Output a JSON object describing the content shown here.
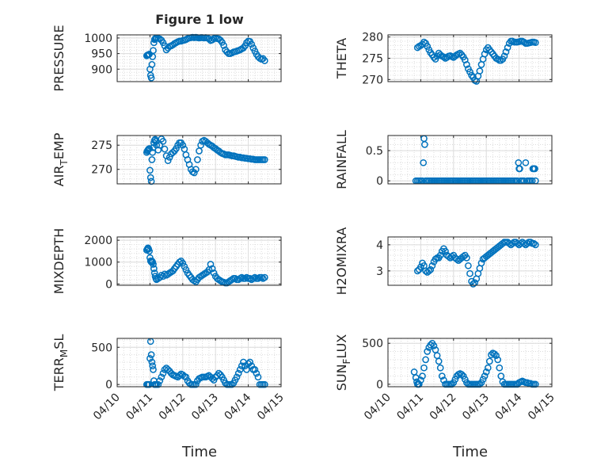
{
  "figure_title": "Figure 1 low",
  "xlabel": "Time",
  "x_tick_labels": [
    "04/10",
    "04/11",
    "04/12",
    "04/13",
    "04/14",
    "04/15"
  ],
  "colors": {
    "marker": "#0072BD",
    "grid": "#dcdcdc",
    "axis": "#262626"
  },
  "chart_data": [
    {
      "type": "scatter",
      "title": "Figure 1 low",
      "ylabel": "PRESSURE",
      "ylim": [
        860,
        1010
      ],
      "yticks": [
        900,
        950,
        1000
      ],
      "xlim": [
        0,
        5
      ],
      "grid": true,
      "x": [
        0.9,
        0.92,
        0.94,
        0.96,
        0.98,
        1.0,
        1.02,
        1.04,
        1.06,
        1.08,
        1.1,
        1.12,
        1.14,
        1.16,
        1.18,
        1.2,
        1.25,
        1.3,
        1.35,
        1.4,
        1.45,
        1.5,
        1.55,
        1.6,
        1.65,
        1.7,
        1.75,
        1.8,
        1.85,
        1.9,
        1.95,
        2.0,
        2.05,
        2.1,
        2.15,
        2.2,
        2.25,
        2.3,
        2.35,
        2.4,
        2.45,
        2.5,
        2.55,
        2.6,
        2.65,
        2.7,
        2.75,
        2.8,
        2.85,
        2.9,
        2.95,
        3.0,
        3.05,
        3.1,
        3.15,
        3.2,
        3.25,
        3.3,
        3.35,
        3.4,
        3.45,
        3.5,
        3.55,
        3.6,
        3.65,
        3.7,
        3.75,
        3.8,
        3.85,
        3.9,
        3.95,
        4.0,
        4.05,
        4.1,
        4.15,
        4.2,
        4.25,
        4.3,
        4.35,
        4.4,
        4.45,
        4.5
      ],
      "y": [
        943,
        945,
        946,
        947,
        948,
        900,
        880,
        872,
        915,
        940,
        960,
        985,
        995,
        998,
        1000,
        1000,
        999,
        997,
        993,
        985,
        975,
        962,
        968,
        973,
        975,
        978,
        982,
        985,
        988,
        990,
        990,
        992,
        993,
        995,
        998,
        1000,
        1001,
        1002,
        1001,
        1002,
        1001,
        1000,
        1001,
        1001,
        1000,
        1001,
        1000,
        997,
        992,
        994,
        998,
        999,
        998,
        997,
        993,
        986,
        976,
        962,
        955,
        950,
        950,
        952,
        955,
        956,
        958,
        960,
        962,
        965,
        968,
        975,
        985,
        990,
        989,
        980,
        968,
        958,
        948,
        940,
        935,
        932,
        934,
        927
      ]
    },
    {
      "type": "scatter",
      "ylabel": "THETA",
      "ylim": [
        269.5,
        280.5
      ],
      "yticks": [
        270,
        275,
        280
      ],
      "xlim": [
        0,
        5
      ],
      "grid": true,
      "x": [
        0.9,
        0.95,
        1.0,
        1.05,
        1.1,
        1.15,
        1.2,
        1.25,
        1.3,
        1.35,
        1.4,
        1.45,
        1.5,
        1.55,
        1.6,
        1.65,
        1.7,
        1.75,
        1.8,
        1.85,
        1.9,
        1.95,
        2.0,
        2.05,
        2.1,
        2.15,
        2.2,
        2.25,
        2.3,
        2.35,
        2.4,
        2.45,
        2.5,
        2.55,
        2.6,
        2.65,
        2.7,
        2.75,
        2.8,
        2.85,
        2.9,
        2.95,
        3.0,
        3.05,
        3.1,
        3.15,
        3.2,
        3.25,
        3.3,
        3.35,
        3.4,
        3.45,
        3.5,
        3.55,
        3.6,
        3.65,
        3.7,
        3.75,
        3.8,
        3.85,
        3.9,
        3.95,
        4.0,
        4.05,
        4.1,
        4.15,
        4.2,
        4.25,
        4.3,
        4.35,
        4.4,
        4.45,
        4.5
      ],
      "y": [
        277.5,
        277.8,
        278.0,
        278.3,
        278.8,
        278.5,
        277.8,
        277.0,
        276.3,
        275.8,
        275.2,
        274.8,
        275.5,
        276.2,
        275.8,
        275.5,
        275.3,
        275.0,
        275.2,
        275.5,
        275.6,
        275.4,
        275.2,
        275.5,
        275.8,
        276.0,
        276.2,
        275.8,
        275.3,
        274.6,
        273.5,
        272.5,
        271.8,
        271.0,
        270.5,
        269.8,
        269.6,
        270.8,
        272.0,
        273.5,
        274.8,
        276.0,
        277.0,
        277.5,
        277.0,
        276.5,
        276.0,
        275.5,
        275.0,
        274.8,
        274.5,
        274.5,
        274.8,
        275.5,
        276.5,
        277.5,
        278.5,
        279.0,
        279.0,
        278.8,
        278.8,
        278.8,
        278.9,
        279.0,
        279.0,
        278.8,
        278.5,
        278.5,
        278.6,
        278.7,
        278.8,
        278.8,
        278.7
      ]
    },
    {
      "type": "scatter",
      "ylabel": "AIR_TEMP",
      "ylim": [
        267,
        277
      ],
      "yticks": [
        270,
        275
      ],
      "xlim": [
        0,
        5
      ],
      "grid": true,
      "x": [
        0.9,
        0.92,
        0.94,
        0.96,
        0.98,
        1.0,
        1.02,
        1.04,
        1.06,
        1.08,
        1.1,
        1.12,
        1.14,
        1.16,
        1.18,
        1.2,
        1.25,
        1.3,
        1.35,
        1.4,
        1.45,
        1.5,
        1.55,
        1.6,
        1.65,
        1.7,
        1.75,
        1.8,
        1.85,
        1.9,
        1.95,
        2.0,
        2.05,
        2.1,
        2.15,
        2.2,
        2.25,
        2.3,
        2.35,
        2.4,
        2.45,
        2.5,
        2.55,
        2.6,
        2.65,
        2.7,
        2.75,
        2.8,
        2.85,
        2.9,
        2.95,
        3.0,
        3.05,
        3.1,
        3.15,
        3.2,
        3.25,
        3.3,
        3.35,
        3.4,
        3.45,
        3.5,
        3.55,
        3.6,
        3.65,
        3.7,
        3.75,
        3.8,
        3.85,
        3.9,
        3.95,
        4.0,
        4.05,
        4.1,
        4.15,
        4.2,
        4.25,
        4.3,
        4.35,
        4.4,
        4.45,
        4.5
      ],
      "y": [
        273.5,
        273.8,
        274.0,
        274.2,
        274.3,
        269.8,
        268.3,
        267.5,
        272.0,
        273.5,
        274.5,
        275.5,
        276.0,
        276.2,
        275.8,
        275.0,
        274.0,
        275.0,
        276.3,
        275.8,
        274.2,
        272.8,
        271.8,
        272.5,
        273.2,
        273.5,
        273.8,
        274.3,
        275.0,
        275.5,
        275.5,
        275.0,
        274.2,
        273.0,
        272.0,
        271.0,
        270.0,
        269.5,
        269.3,
        270.0,
        272.0,
        273.8,
        275.0,
        275.8,
        276.0,
        275.8,
        275.5,
        275.2,
        275.0,
        274.8,
        274.5,
        274.3,
        274.0,
        273.8,
        273.5,
        273.3,
        273.2,
        273.0,
        273.0,
        273.0,
        272.9,
        272.8,
        272.8,
        272.7,
        272.6,
        272.5,
        272.5,
        272.4,
        272.4,
        272.3,
        272.3,
        272.2,
        272.2,
        272.1,
        272.1,
        272.0,
        272.0,
        272.0,
        272.0,
        272.0,
        272.0,
        272.0
      ]
    },
    {
      "type": "scatter",
      "ylabel": "RAINFALL",
      "ylim": [
        -0.05,
        0.75
      ],
      "yticks": [
        0,
        0.5
      ],
      "xlim": [
        0,
        5
      ],
      "grid": true,
      "x": [
        0.85,
        0.9,
        0.95,
        1.0,
        1.05,
        1.08,
        1.1,
        1.12,
        1.15,
        1.2,
        1.25,
        1.3,
        1.35,
        1.4,
        1.45,
        1.5,
        1.55,
        1.6,
        1.65,
        1.7,
        1.75,
        1.8,
        1.85,
        1.9,
        1.95,
        2.0,
        2.05,
        2.1,
        2.15,
        2.2,
        2.25,
        2.3,
        2.35,
        2.4,
        2.45,
        2.5,
        2.55,
        2.6,
        2.65,
        2.7,
        2.75,
        2.8,
        2.85,
        2.9,
        2.95,
        3.0,
        3.05,
        3.1,
        3.15,
        3.2,
        3.25,
        3.3,
        3.35,
        3.4,
        3.45,
        3.5,
        3.55,
        3.6,
        3.65,
        3.7,
        3.75,
        3.8,
        3.85,
        3.9,
        3.95,
        3.98,
        4.0,
        4.02,
        4.05,
        4.1,
        4.15,
        4.2,
        4.25,
        4.3,
        4.35,
        4.4,
        4.42,
        4.45,
        4.48,
        4.5
      ],
      "y": [
        0,
        0,
        0,
        0,
        0,
        0.3,
        0.7,
        0.6,
        0,
        0,
        0,
        0,
        0,
        0,
        0,
        0,
        0,
        0,
        0,
        0,
        0,
        0,
        0,
        0,
        0,
        0,
        0,
        0,
        0,
        0,
        0,
        0,
        0,
        0,
        0,
        0,
        0,
        0,
        0,
        0,
        0,
        0,
        0,
        0,
        0,
        0,
        0,
        0,
        0,
        0,
        0,
        0,
        0,
        0,
        0,
        0,
        0,
        0,
        0,
        0,
        0,
        0,
        0,
        0,
        0,
        0.3,
        0.2,
        0.2,
        0,
        0,
        0,
        0.3,
        0,
        0,
        0,
        0,
        0.2,
        0.2,
        0.2,
        0
      ]
    },
    {
      "type": "scatter",
      "ylabel": "MIXDEPTH",
      "ylim": [
        -60,
        2150
      ],
      "yticks": [
        0,
        1000,
        2000
      ],
      "xlim": [
        0,
        5
      ],
      "grid": true,
      "x": [
        0.9,
        0.92,
        0.94,
        0.96,
        0.98,
        1.0,
        1.02,
        1.04,
        1.06,
        1.08,
        1.1,
        1.12,
        1.14,
        1.16,
        1.18,
        1.2,
        1.25,
        1.3,
        1.35,
        1.4,
        1.45,
        1.5,
        1.55,
        1.6,
        1.65,
        1.7,
        1.75,
        1.8,
        1.85,
        1.9,
        1.95,
        2.0,
        2.05,
        2.1,
        2.15,
        2.2,
        2.25,
        2.3,
        2.35,
        2.4,
        2.45,
        2.5,
        2.55,
        2.6,
        2.65,
        2.7,
        2.75,
        2.8,
        2.85,
        2.9,
        2.95,
        3.0,
        3.05,
        3.1,
        3.15,
        3.2,
        3.25,
        3.3,
        3.35,
        3.4,
        3.45,
        3.5,
        3.55,
        3.6,
        3.65,
        3.7,
        3.75,
        3.8,
        3.85,
        3.9,
        3.95,
        4.0,
        4.05,
        4.1,
        4.15,
        4.2,
        4.25,
        4.3,
        4.35,
        4.4,
        4.45,
        4.5
      ],
      "y": [
        1550,
        1600,
        1650,
        1600,
        1500,
        1200,
        1050,
        1000,
        1050,
        1000,
        900,
        700,
        500,
        350,
        250,
        200,
        250,
        300,
        400,
        350,
        450,
        400,
        450,
        500,
        550,
        600,
        700,
        800,
        900,
        1000,
        1050,
        950,
        800,
        650,
        500,
        400,
        300,
        200,
        150,
        100,
        200,
        300,
        350,
        400,
        450,
        500,
        550,
        650,
        900,
        700,
        500,
        350,
        250,
        200,
        150,
        100,
        80,
        50,
        50,
        100,
        150,
        200,
        250,
        250,
        200,
        200,
        250,
        300,
        250,
        250,
        300,
        250,
        250,
        200,
        250,
        300,
        250,
        250,
        300,
        300,
        250,
        300
      ]
    },
    {
      "type": "scatter",
      "ylabel": "H2OMIXRA",
      "ylim": [
        2.45,
        4.3
      ],
      "yticks": [
        3,
        4
      ],
      "xlim": [
        0,
        5
      ],
      "grid": true,
      "x": [
        0.9,
        0.95,
        1.0,
        1.05,
        1.1,
        1.15,
        1.2,
        1.25,
        1.3,
        1.35,
        1.4,
        1.45,
        1.5,
        1.55,
        1.6,
        1.65,
        1.7,
        1.75,
        1.8,
        1.85,
        1.9,
        1.95,
        2.0,
        2.05,
        2.1,
        2.15,
        2.2,
        2.25,
        2.3,
        2.35,
        2.4,
        2.45,
        2.5,
        2.55,
        2.6,
        2.65,
        2.7,
        2.75,
        2.8,
        2.85,
        2.9,
        2.95,
        3.0,
        3.05,
        3.1,
        3.15,
        3.2,
        3.25,
        3.3,
        3.35,
        3.4,
        3.45,
        3.5,
        3.55,
        3.6,
        3.65,
        3.7,
        3.75,
        3.8,
        3.85,
        3.9,
        3.95,
        4.0,
        4.05,
        4.1,
        4.15,
        4.2,
        4.25,
        4.3,
        4.35,
        4.4,
        4.45,
        4.5
      ],
      "y": [
        3.0,
        3.05,
        3.15,
        3.3,
        3.2,
        3.0,
        2.95,
        3.0,
        3.05,
        3.2,
        3.35,
        3.45,
        3.5,
        3.5,
        3.6,
        3.75,
        3.85,
        3.75,
        3.6,
        3.55,
        3.5,
        3.55,
        3.6,
        3.5,
        3.45,
        3.4,
        3.45,
        3.5,
        3.55,
        3.6,
        3.5,
        3.2,
        2.9,
        2.6,
        2.5,
        2.55,
        2.7,
        2.9,
        3.1,
        3.3,
        3.45,
        3.5,
        3.55,
        3.6,
        3.65,
        3.7,
        3.75,
        3.8,
        3.85,
        3.9,
        3.95,
        4.0,
        4.05,
        4.1,
        4.1,
        4.1,
        4.05,
        4.0,
        4.05,
        4.1,
        4.1,
        4.05,
        4.0,
        4.05,
        4.1,
        4.05,
        4.0,
        4.05,
        4.1,
        4.1,
        4.05,
        4.05,
        4.0
      ]
    },
    {
      "type": "scatter",
      "ylabel": "TERR_MSL",
      "ylim": [
        -30,
        620
      ],
      "yticks": [
        0,
        500
      ],
      "xlim": [
        0,
        5
      ],
      "grid": true,
      "x": [
        0.9,
        0.92,
        0.94,
        0.96,
        0.98,
        1.0,
        1.02,
        1.04,
        1.06,
        1.08,
        1.1,
        1.12,
        1.14,
        1.16,
        1.18,
        1.2,
        1.25,
        1.3,
        1.35,
        1.4,
        1.45,
        1.5,
        1.55,
        1.6,
        1.65,
        1.7,
        1.75,
        1.8,
        1.85,
        1.9,
        1.95,
        2.0,
        2.05,
        2.1,
        2.15,
        2.2,
        2.25,
        2.3,
        2.35,
        2.4,
        2.45,
        2.5,
        2.55,
        2.6,
        2.65,
        2.7,
        2.75,
        2.8,
        2.85,
        2.9,
        2.95,
        3.0,
        3.05,
        3.1,
        3.15,
        3.2,
        3.25,
        3.3,
        3.35,
        3.4,
        3.45,
        3.5,
        3.55,
        3.6,
        3.65,
        3.7,
        3.75,
        3.8,
        3.85,
        3.9,
        3.95,
        4.0,
        4.05,
        4.1,
        4.15,
        4.2,
        4.25,
        4.3,
        4.35,
        4.4,
        4.45,
        4.5
      ],
      "y": [
        0,
        0,
        0,
        0,
        0,
        350,
        580,
        400,
        300,
        250,
        200,
        50,
        0,
        0,
        0,
        0,
        0,
        50,
        100,
        150,
        200,
        220,
        200,
        180,
        150,
        130,
        120,
        110,
        100,
        120,
        140,
        130,
        110,
        100,
        50,
        20,
        0,
        0,
        0,
        0,
        50,
        80,
        90,
        100,
        100,
        100,
        110,
        120,
        100,
        80,
        60,
        100,
        120,
        150,
        130,
        100,
        60,
        20,
        0,
        0,
        0,
        0,
        20,
        60,
        100,
        150,
        200,
        250,
        300,
        250,
        200,
        280,
        300,
        250,
        200,
        200,
        150,
        100,
        0,
        0,
        0,
        0
      ]
    },
    {
      "type": "scatter",
      "ylabel": "SUN_FLUX",
      "ylim": [
        -30,
        560
      ],
      "yticks": [
        0,
        500
      ],
      "xlim": [
        0,
        5
      ],
      "grid": true,
      "x": [
        0.8,
        0.85,
        0.88,
        0.9,
        0.92,
        0.95,
        1.0,
        1.05,
        1.1,
        1.15,
        1.2,
        1.25,
        1.3,
        1.35,
        1.4,
        1.45,
        1.5,
        1.55,
        1.6,
        1.65,
        1.7,
        1.75,
        1.8,
        1.85,
        1.9,
        1.95,
        2.0,
        2.05,
        2.1,
        2.15,
        2.2,
        2.25,
        2.3,
        2.35,
        2.4,
        2.45,
        2.5,
        2.55,
        2.6,
        2.65,
        2.7,
        2.75,
        2.8,
        2.85,
        2.9,
        2.95,
        3.0,
        3.05,
        3.1,
        3.15,
        3.2,
        3.25,
        3.3,
        3.35,
        3.4,
        3.45,
        3.5,
        3.55,
        3.6,
        3.65,
        3.7,
        3.75,
        3.8,
        3.85,
        3.9,
        3.95,
        4.0,
        4.05,
        4.1,
        4.15,
        4.2,
        4.25,
        4.3,
        4.35,
        4.4,
        4.45,
        4.5
      ],
      "y": [
        150,
        80,
        30,
        0,
        0,
        0,
        50,
        100,
        200,
        300,
        400,
        450,
        480,
        500,
        470,
        420,
        350,
        280,
        200,
        100,
        50,
        0,
        0,
        0,
        0,
        0,
        20,
        60,
        100,
        120,
        130,
        120,
        100,
        60,
        20,
        0,
        0,
        0,
        0,
        0,
        0,
        0,
        0,
        20,
        60,
        100,
        150,
        200,
        280,
        360,
        380,
        370,
        350,
        300,
        200,
        100,
        30,
        0,
        0,
        0,
        0,
        0,
        0,
        0,
        0,
        0,
        20,
        30,
        40,
        30,
        20,
        20,
        10,
        10,
        0,
        0,
        0
      ]
    }
  ]
}
